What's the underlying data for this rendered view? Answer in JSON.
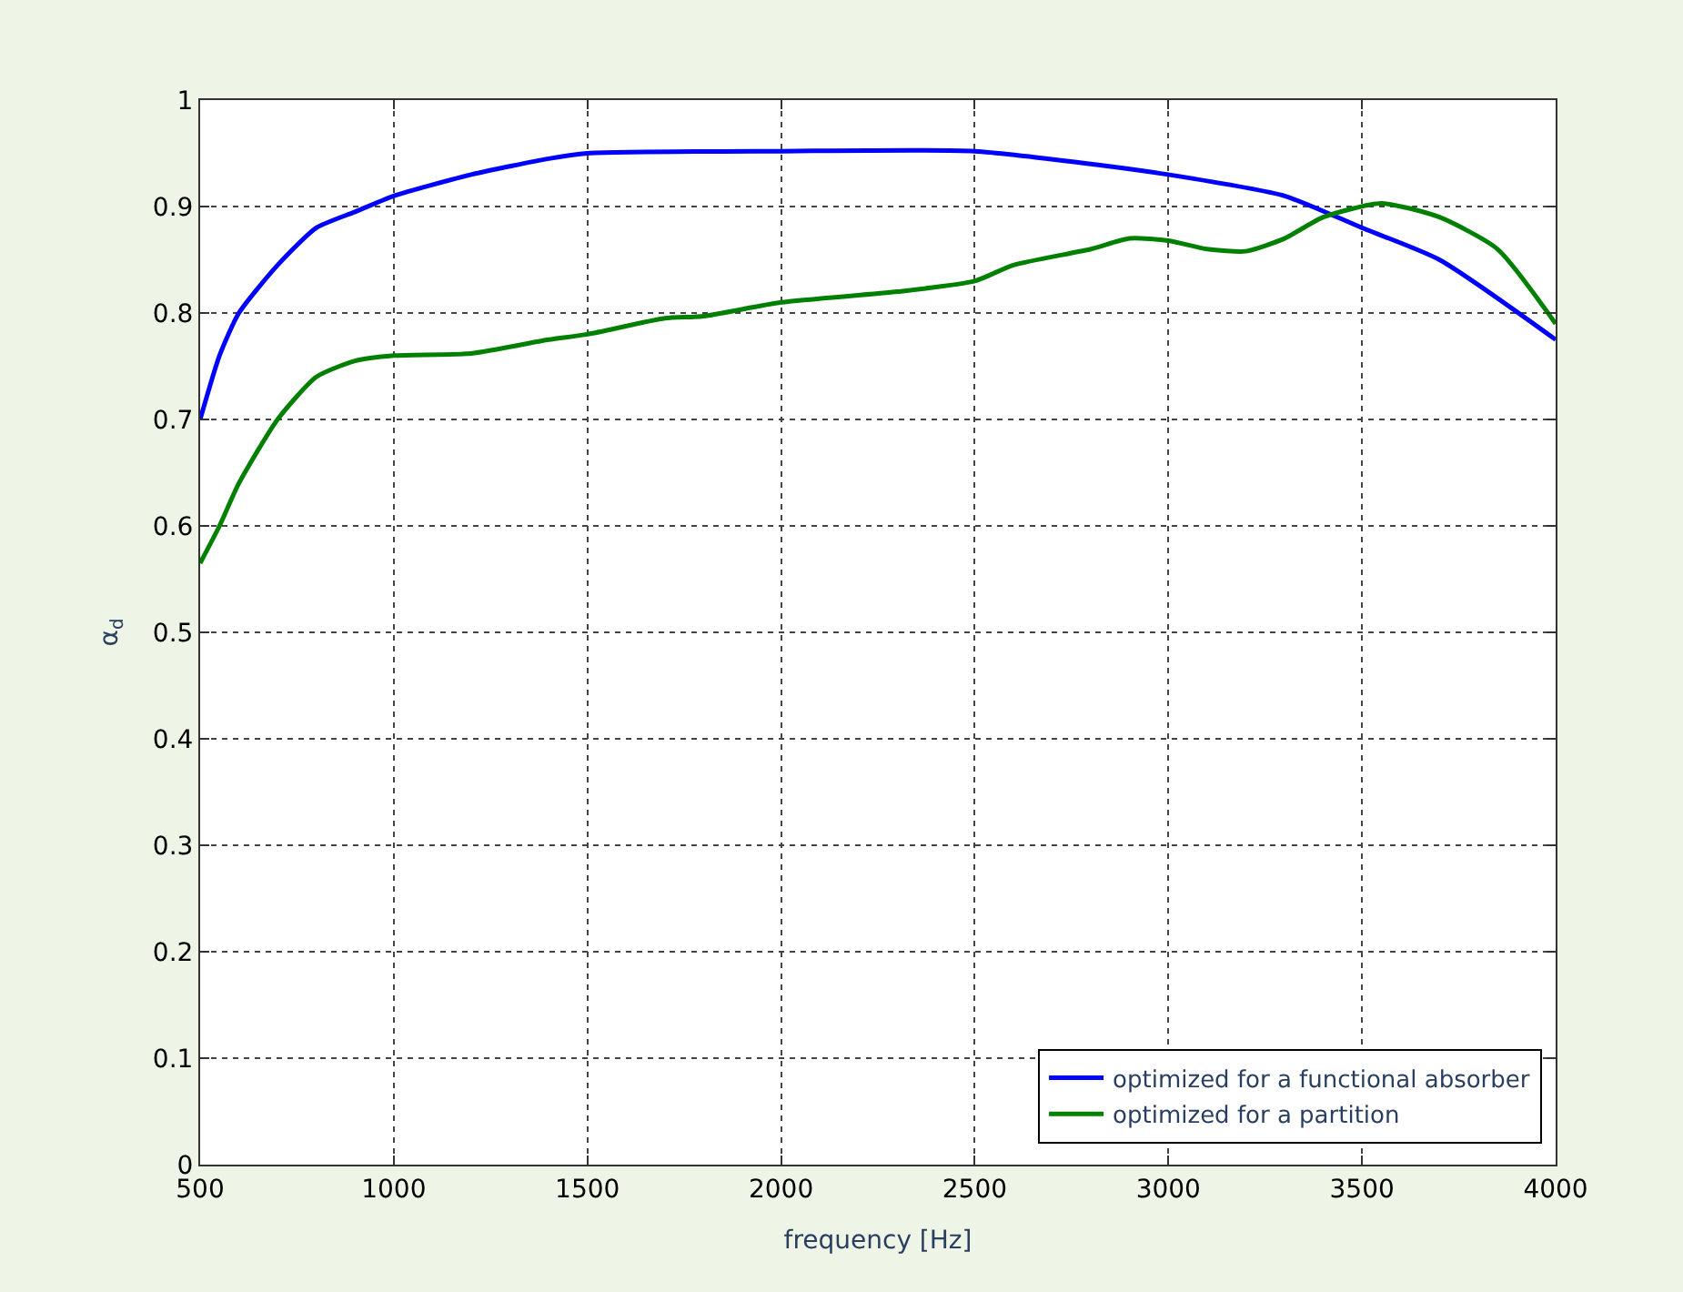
{
  "chart_data": {
    "type": "line",
    "xlabel": "frequency [Hz]",
    "ylabel": "α$_{d}$",
    "xlim": [
      500,
      4000
    ],
    "xticks": [
      500,
      1000,
      1500,
      2000,
      2500,
      3000,
      3500,
      4000
    ],
    "ylim": [
      0,
      1
    ],
    "yticks": [
      0,
      0.1,
      0.2,
      0.3,
      0.4,
      0.5,
      0.6,
      0.7,
      0.8,
      0.9,
      1
    ],
    "grid": true,
    "legend": "bottom right",
    "line_style": "solid",
    "marker": "none",
    "series": [
      {
        "name": "optimized for a functional absorber",
        "color": "#0000ff",
        "x": [
          500,
          550,
          600,
          700,
          800,
          900,
          1000,
          1200,
          1400,
          1500,
          2000,
          2500,
          2800,
          3000,
          3300,
          3500,
          3700,
          4000
        ],
        "values": [
          0.7,
          0.76,
          0.8,
          0.845,
          0.88,
          0.895,
          0.91,
          0.93,
          0.945,
          0.95,
          0.952,
          0.952,
          0.94,
          0.93,
          0.91,
          0.88,
          0.85,
          0.775
        ]
      },
      {
        "name": "optimized for a partition",
        "color": "#008000",
        "x": [
          500,
          550,
          600,
          700,
          800,
          900,
          1000,
          1200,
          1400,
          1500,
          1700,
          1800,
          2000,
          2300,
          2500,
          2600,
          2800,
          2900,
          3000,
          3100,
          3200,
          3300,
          3400,
          3550,
          3700,
          3850,
          4000
        ],
        "values": [
          0.565,
          0.6,
          0.64,
          0.7,
          0.74,
          0.755,
          0.76,
          0.762,
          0.775,
          0.78,
          0.795,
          0.797,
          0.81,
          0.82,
          0.83,
          0.845,
          0.86,
          0.87,
          0.868,
          0.86,
          0.858,
          0.87,
          0.89,
          0.903,
          0.89,
          0.86,
          0.79
        ]
      }
    ]
  }
}
